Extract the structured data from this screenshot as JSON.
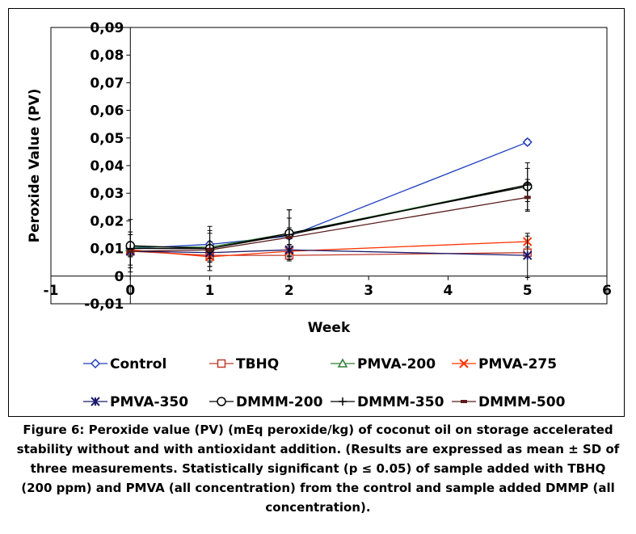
{
  "chart_data": {
    "type": "line",
    "xlabel": "Week",
    "ylabel": "Peroxide Value (PV)",
    "xlim": [
      -1,
      6
    ],
    "ylim": [
      -0.01,
      0.09
    ],
    "x_ticks": [
      "-1",
      "0",
      "1",
      "2",
      "3",
      "4",
      "5",
      "6"
    ],
    "y_ticks": [
      "-0,01",
      "0",
      "0,01",
      "0,02",
      "0,03",
      "0,04",
      "0,05",
      "0,06",
      "0,07",
      "0,08",
      "0,09"
    ],
    "grid": false,
    "legend_position": "bottom",
    "x": [
      0,
      1,
      2,
      5
    ],
    "series": [
      {
        "name": "Control",
        "color": "#1f3fbf",
        "marker": "diamond",
        "values": [
          0.01,
          0.0115,
          0.0145,
          0.0485
        ],
        "error": [
          0.001,
          0.001,
          0.001,
          0.001
        ]
      },
      {
        "name": "TBHQ",
        "color": "#c0392b",
        "marker": "square",
        "values": [
          0.009,
          0.0075,
          0.0075,
          0.0085
        ],
        "error": [
          0.002,
          0.002,
          0.002,
          0.001
        ]
      },
      {
        "name": "PMVA-200",
        "color": "#2e7d32",
        "marker": "triangle",
        "values": [
          0.0105,
          0.0105,
          0.0155,
          0.033
        ],
        "error": [
          0.002,
          0.002,
          0.002,
          0.002
        ]
      },
      {
        "name": "PMVA-275",
        "color": "#ff3300",
        "marker": "x",
        "values": [
          0.0095,
          0.007,
          0.009,
          0.0125
        ],
        "error": [
          0.002,
          0.002,
          0.002,
          0.002
        ]
      },
      {
        "name": "PMVA-350",
        "color": "#1a1a6e",
        "marker": "star",
        "values": [
          0.009,
          0.0085,
          0.0095,
          0.0075
        ],
        "error": [
          0.002,
          0.002,
          0.002,
          0.008
        ]
      },
      {
        "name": "DMMM-200",
        "color": "#000000",
        "marker": "circle",
        "values": [
          0.011,
          0.01,
          0.0155,
          0.0325
        ],
        "error": [
          0.0095,
          0.0065,
          0.0085,
          0.0085
        ]
      },
      {
        "name": "DMMM-350",
        "color": "#000000",
        "marker": "plus",
        "values": [
          0.01,
          0.01,
          0.015,
          0.033
        ],
        "error": [
          0.006,
          0.008,
          0.009,
          0.006
        ]
      },
      {
        "name": "DMMM-500",
        "color": "#5a1a1a",
        "marker": "dash",
        "values": [
          0.009,
          0.0095,
          0.014,
          0.0285
        ],
        "error": [
          0.006,
          0.006,
          0.007,
          0.005
        ]
      }
    ]
  },
  "caption": "Figure 6: Peroxide value (PV) (mEq peroxide/kg) of coconut oil on storage accelerated stability without and with antioxidant addition. (Results are expressed as mean ± SD of three measurements. Statistically significant (p ≤ 0.05) of sample added with TBHQ (200 ppm) and PMVA (all concentration) from the control and sample added DMMP (all concentration)."
}
